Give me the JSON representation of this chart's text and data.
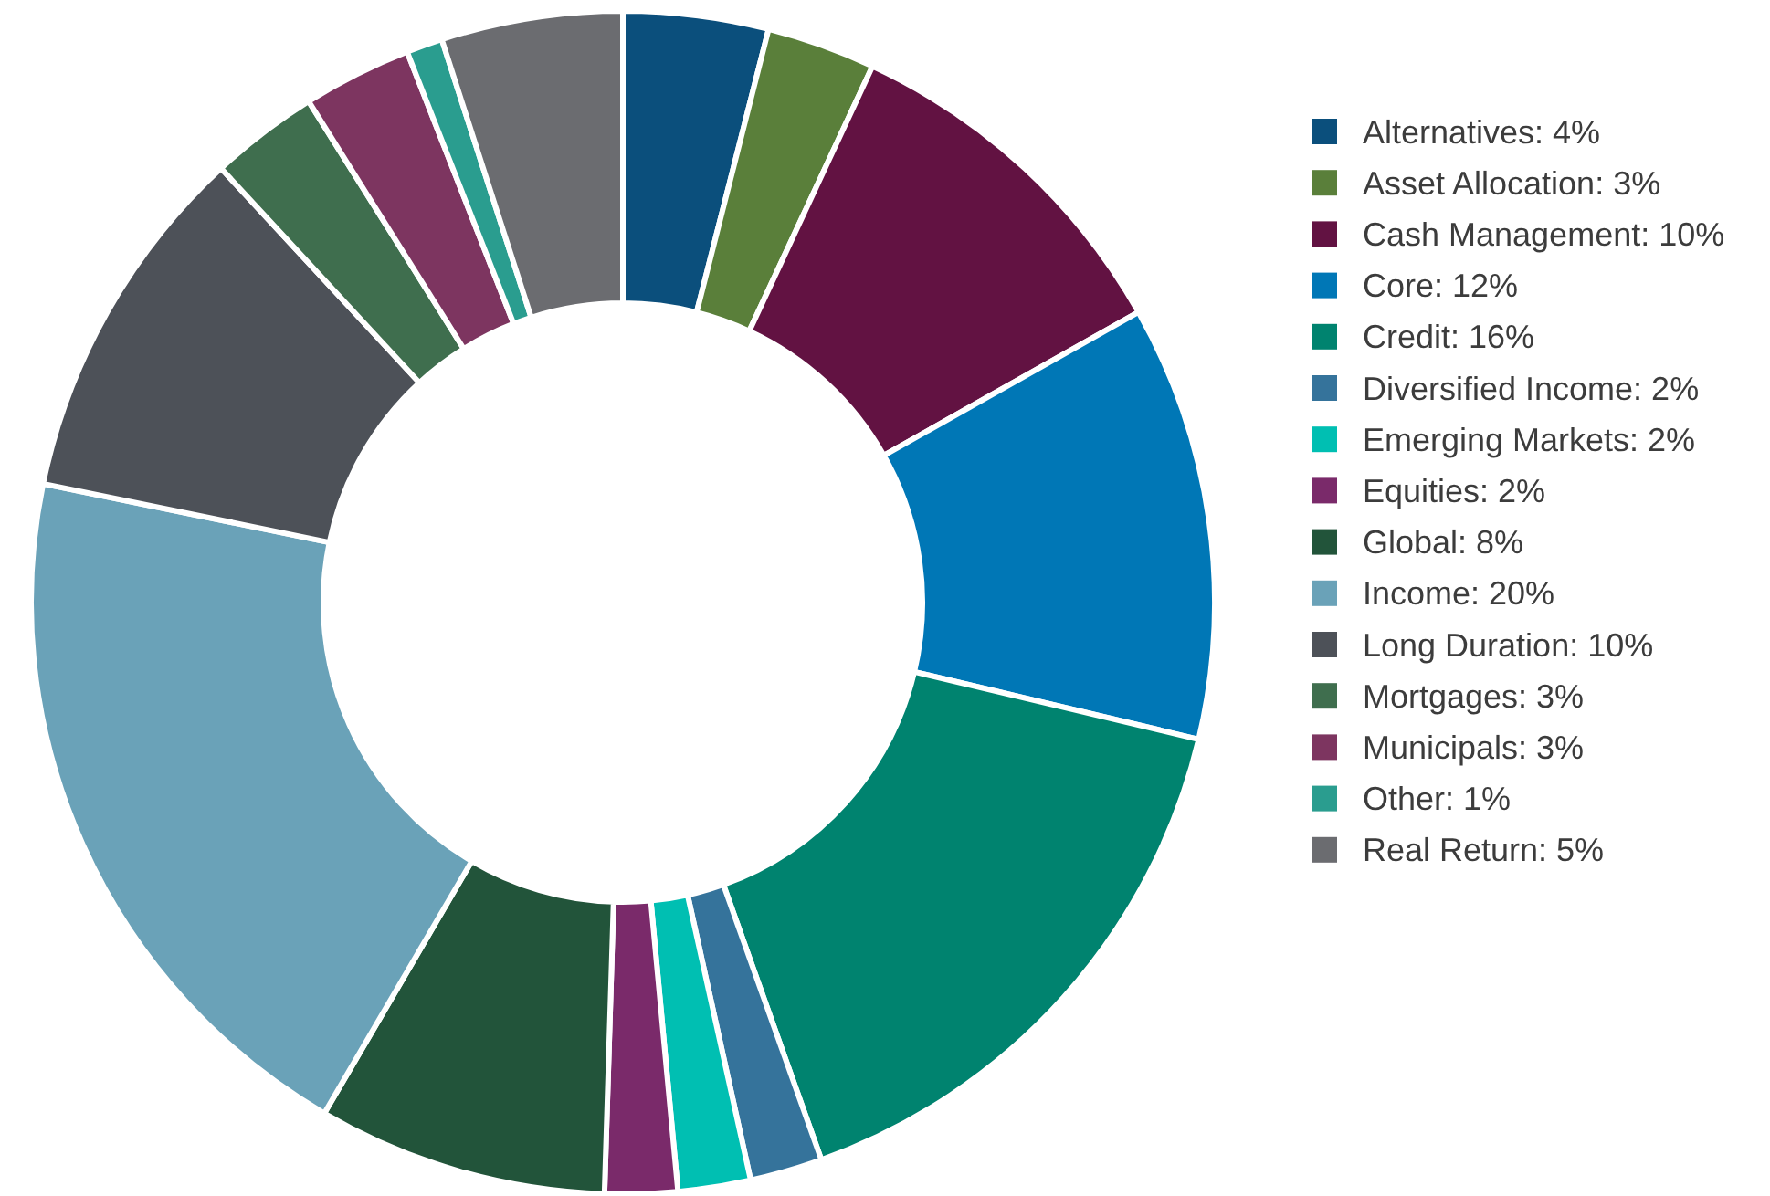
{
  "chart_data": {
    "type": "donut",
    "categories": [
      "Alternatives: 4%",
      "Asset Allocation: 3%",
      "Cash Management: 10%",
      "Core: 12%",
      "Credit: 16%",
      "Diversified Income: 2%",
      "Emerging Markets: 2%",
      "Equities: 2%",
      "Global: 8%",
      "Income: 20%",
      "Long Duration: 10%",
      "Mortgages: 3%",
      "Municipals: 3%",
      "Other: 1%",
      "Real Return: 5%"
    ],
    "values": [
      4,
      3,
      10,
      12,
      16,
      2,
      2,
      2,
      8,
      20,
      10,
      3,
      3,
      1,
      5
    ],
    "colors": [
      "#0b4f7c",
      "#5a7f3a",
      "#621242",
      "#0077b6",
      "#00836f",
      "#35739b",
      "#00bfb2",
      "#7a2a6a",
      "#22543a",
      "#6aa2b8",
      "#4d5158",
      "#3f6e4e",
      "#7d3560",
      "#2a9d8f",
      "#6b6c70"
    ],
    "legend": "right"
  }
}
